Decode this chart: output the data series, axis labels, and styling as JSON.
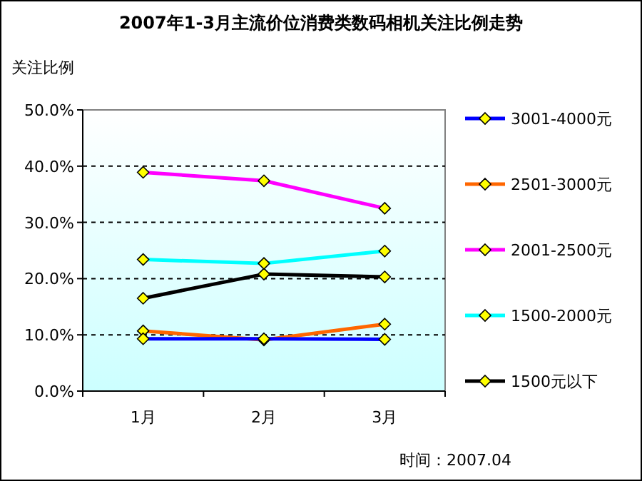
{
  "chart_data": {
    "type": "line",
    "title": "2007年1-3月主流价位消费类数码相机关注比例走势",
    "ylabel": "关注比例",
    "categories": [
      "1月",
      "2月",
      "3月"
    ],
    "series": [
      {
        "name": "3001-4000元",
        "color": "#0000ff",
        "values": [
          9.3,
          9.3,
          9.2
        ]
      },
      {
        "name": "2501-3000元",
        "color": "#ff6600",
        "values": [
          10.7,
          9.1,
          11.9
        ]
      },
      {
        "name": "2001-2500元",
        "color": "#ff00ff",
        "values": [
          38.9,
          37.4,
          32.5
        ]
      },
      {
        "name": "1500-2000元",
        "color": "#00ffff",
        "values": [
          23.4,
          22.7,
          24.9
        ]
      },
      {
        "name": "1500元以下",
        "color": "#000000",
        "values": [
          16.5,
          20.8,
          20.3
        ]
      }
    ],
    "ylim": [
      0,
      50
    ],
    "yticks": [
      {
        "value": 0,
        "label": "0.0%"
      },
      {
        "value": 10,
        "label": "10.0%"
      },
      {
        "value": 20,
        "label": "20.0%"
      },
      {
        "value": 30,
        "label": "30.0%"
      },
      {
        "value": 40,
        "label": "40.0%"
      },
      {
        "value": 50,
        "label": "50.0%"
      }
    ],
    "grid": "y",
    "legend": "right",
    "marker": "diamond",
    "line_style": "solid",
    "annotations": [
      "时间：2007.04"
    ]
  }
}
